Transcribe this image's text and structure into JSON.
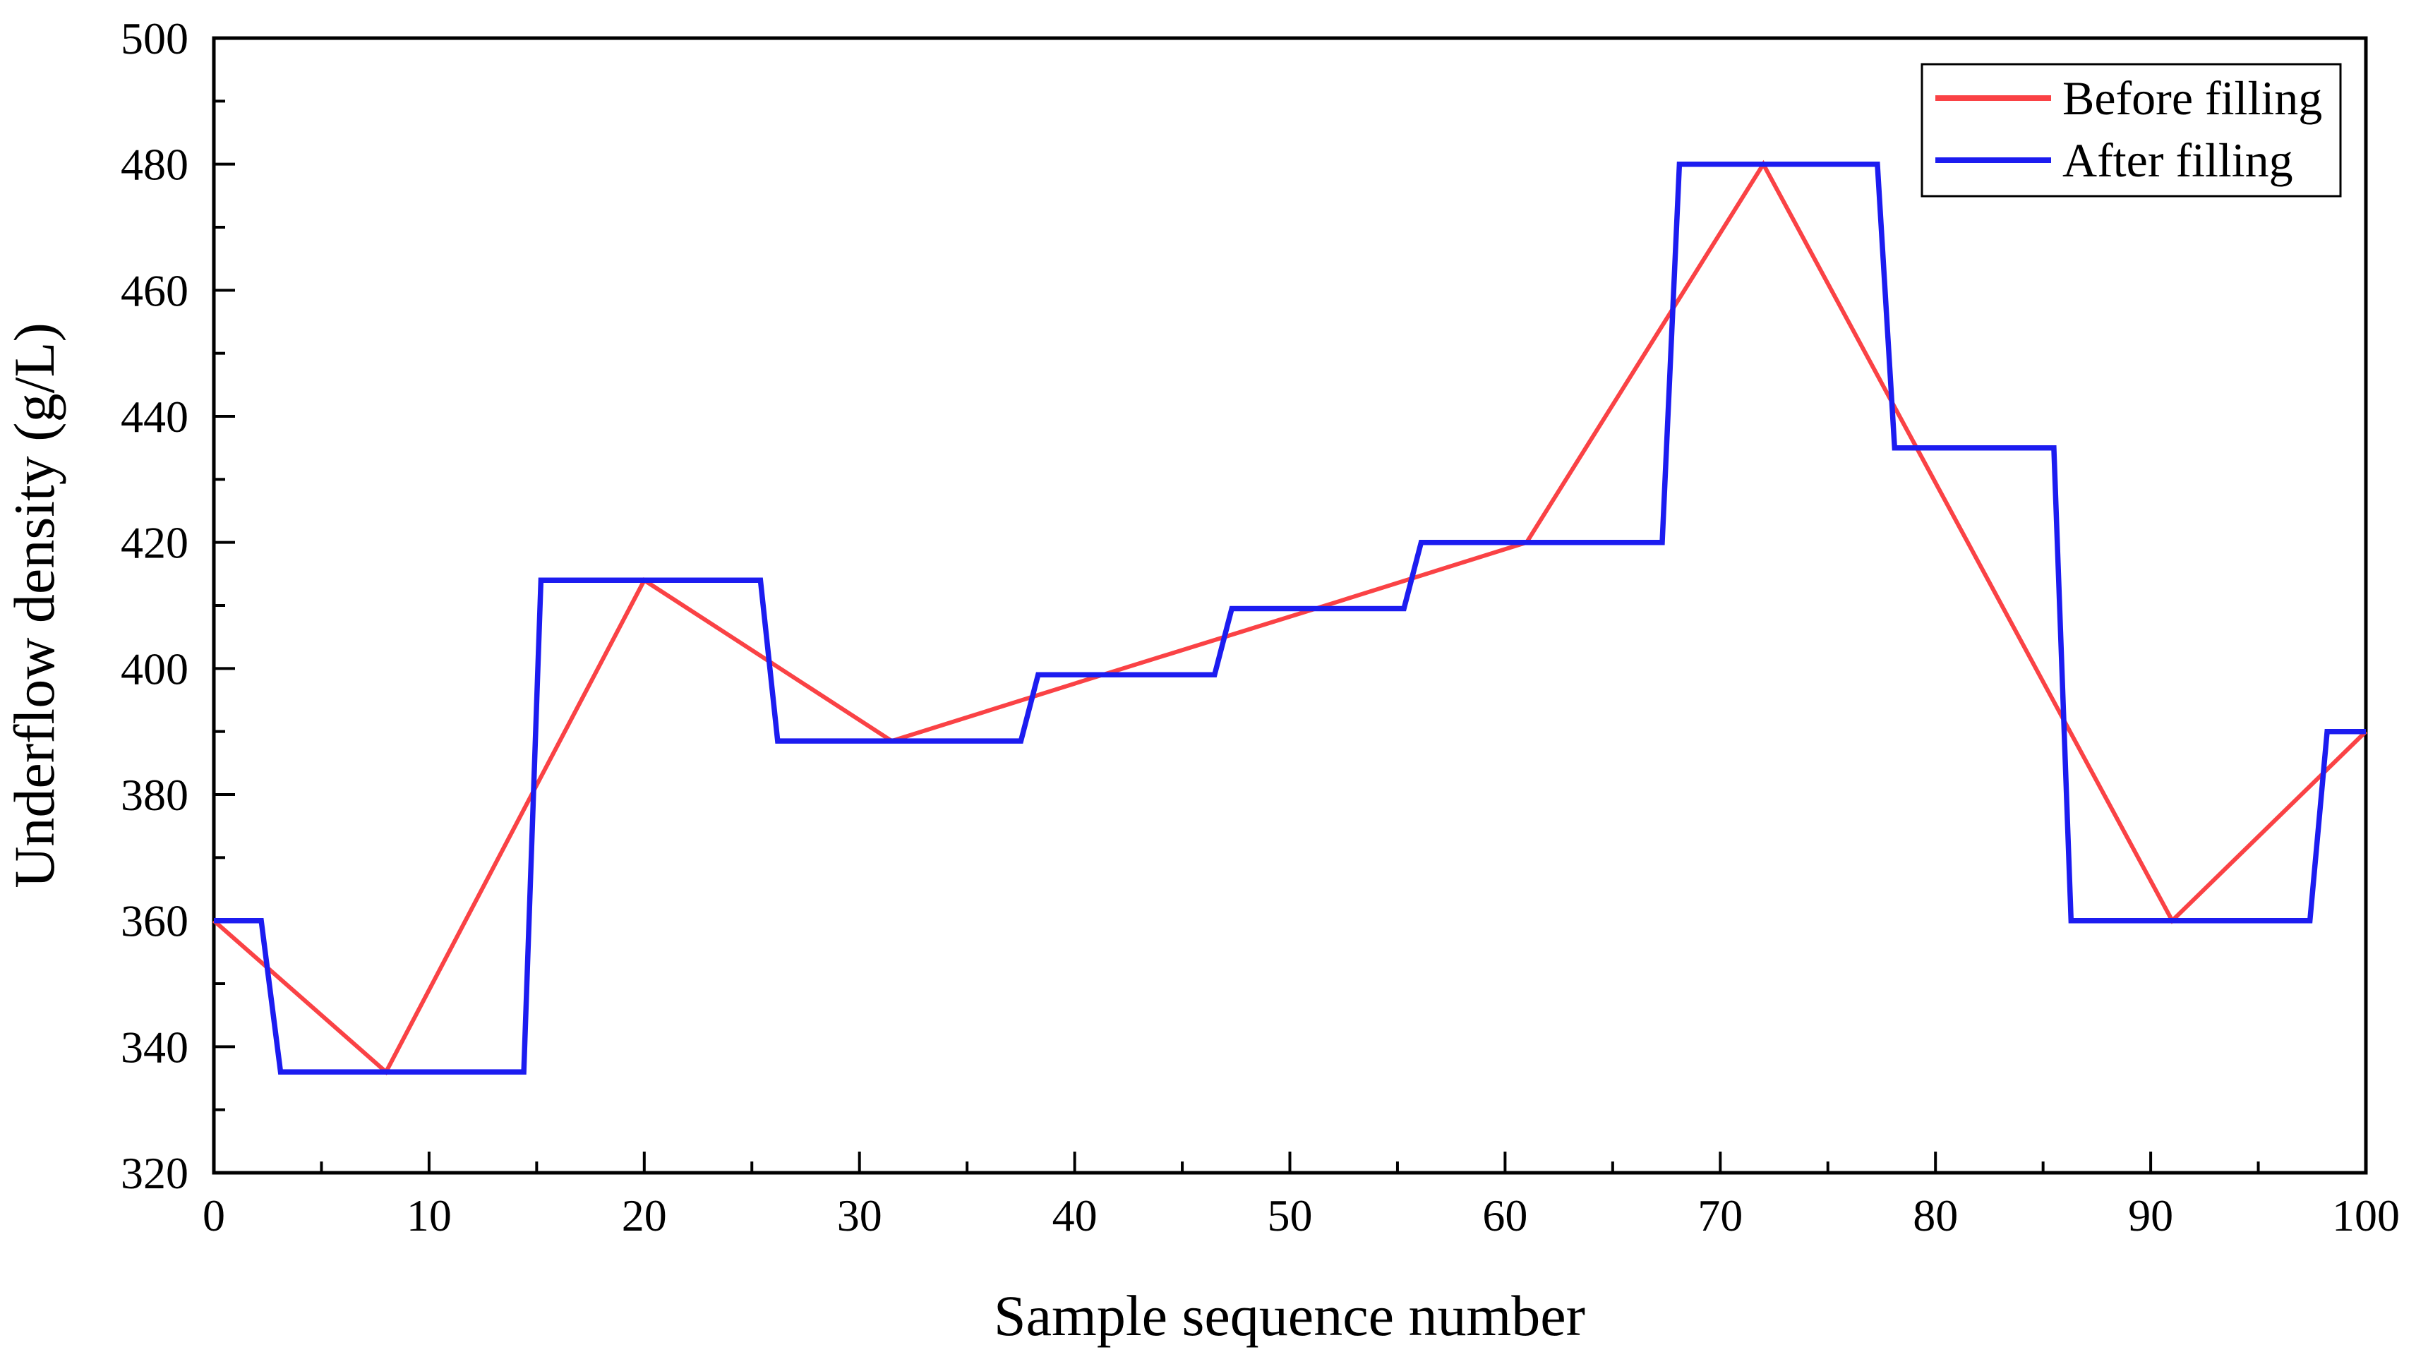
{
  "chart_data": {
    "type": "line",
    "title": "",
    "xlabel": "Sample sequence number",
    "ylabel": "Underflow density (g/L)",
    "grid": false,
    "x_axis": {
      "min": 0,
      "max": 100,
      "major_step": 10,
      "minor_step": 5,
      "tick_labels": [
        "0",
        "10",
        "20",
        "30",
        "40",
        "50",
        "60",
        "70",
        "80",
        "90",
        "100"
      ]
    },
    "y_axis": {
      "min": 320,
      "max": 500,
      "major_step": 20,
      "minor_step": 10,
      "tick_labels": [
        "320",
        "340",
        "360",
        "380",
        "400",
        "420",
        "440",
        "460",
        "480",
        "500"
      ]
    },
    "legend": {
      "position": "top-right",
      "entries": [
        {
          "label": "Before filling",
          "color": "#fa4245"
        },
        {
          "label": "After filling",
          "color": "#1c1cf0"
        }
      ]
    },
    "series": [
      {
        "name": "Before filling",
        "color": "#fa4245",
        "stroke_width": 6,
        "points": [
          [
            0,
            360
          ],
          [
            8,
            336
          ],
          [
            20,
            414
          ],
          [
            31.5,
            388.5
          ],
          [
            41.3,
            399
          ],
          [
            51.2,
            409.5
          ],
          [
            61,
            420
          ],
          [
            72,
            480
          ],
          [
            91,
            360
          ],
          [
            100,
            390
          ]
        ]
      },
      {
        "name": "After filling",
        "color": "#1c1cf0",
        "stroke_width": 7.5,
        "points": [
          [
            0,
            360
          ],
          [
            2.2,
            360
          ],
          [
            3.1,
            336
          ],
          [
            14.4,
            336
          ],
          [
            15.2,
            414
          ],
          [
            25.4,
            414
          ],
          [
            26.2,
            388.5
          ],
          [
            37.5,
            388.5
          ],
          [
            38.3,
            399
          ],
          [
            46.5,
            399
          ],
          [
            47.3,
            409.5
          ],
          [
            55.3,
            409.5
          ],
          [
            56.1,
            420
          ],
          [
            67.3,
            420
          ],
          [
            68.1,
            480
          ],
          [
            77.3,
            480
          ],
          [
            78.1,
            435
          ],
          [
            85.5,
            435
          ],
          [
            86.3,
            360
          ],
          [
            97.4,
            360
          ],
          [
            98.2,
            390
          ],
          [
            100,
            390
          ]
        ]
      }
    ]
  }
}
